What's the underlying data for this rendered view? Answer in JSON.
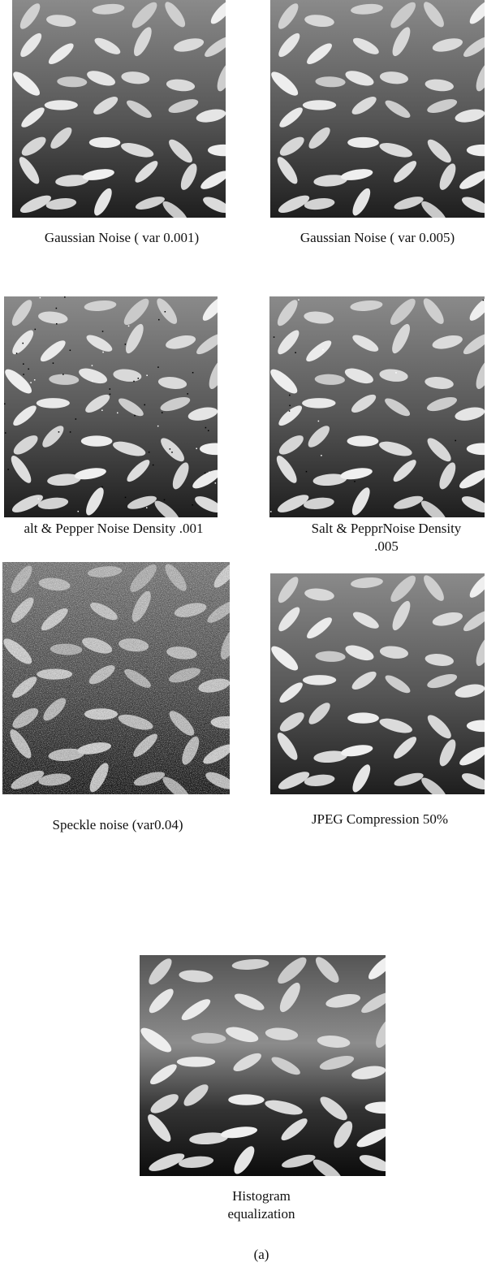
{
  "panels": [
    {
      "caption": [
        "Gaussian Noise ( var 0.001)"
      ]
    },
    {
      "caption": [
        "Gaussian Noise ( var 0.005)"
      ]
    },
    {
      "caption": [
        "alt & Pepper Noise Density .001"
      ]
    },
    {
      "caption": [
        "Salt & PepprNoise Density",
        ".005"
      ]
    },
    {
      "caption": [
        "Speckle noise (var0.04)"
      ]
    },
    {
      "caption": [
        "JPEG Compression 50%"
      ]
    },
    {
      "caption": [
        "Histogram",
        "equalization"
      ]
    }
  ],
  "figure_label": "(a)"
}
